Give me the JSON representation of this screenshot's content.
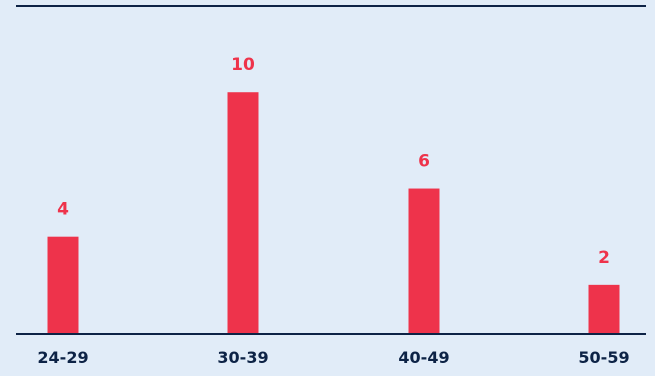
{
  "chart_data": {
    "type": "bar",
    "categories": [
      "24-29",
      "30-39",
      "40-49",
      "50-59"
    ],
    "values": [
      4,
      10,
      6,
      2
    ],
    "ylim": [
      0,
      13
    ],
    "grid": false,
    "legend": "none"
  },
  "colors": {
    "background": "#e1ecf8",
    "bar": "#ee334b",
    "value_label": "#ee334b",
    "axis": "#0d2346",
    "tick_label": "#0d2346"
  }
}
